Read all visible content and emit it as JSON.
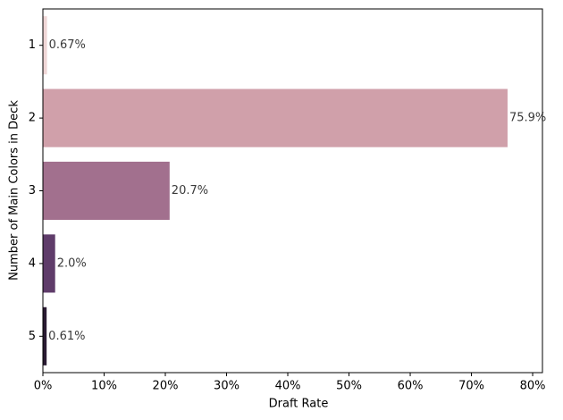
{
  "chart_data": {
    "type": "barh",
    "xlabel": "Draft Rate",
    "ylabel": "Number of Main Colors in Deck",
    "categories": [
      "1",
      "2",
      "3",
      "4",
      "5"
    ],
    "values": [
      0.67,
      75.9,
      20.7,
      2.0,
      0.61
    ],
    "value_labels": [
      "0.67%",
      "75.9%",
      "20.7%",
      "2.0%",
      "0.61%"
    ],
    "colors": [
      "#efd6d6",
      "#d0a0aa",
      "#a2708e",
      "#5f3c6a",
      "#2a1a32"
    ],
    "xlim": [
      0,
      81.6
    ],
    "xticks": [
      {
        "value": 0,
        "label": "0%"
      },
      {
        "value": 10,
        "label": "10%"
      },
      {
        "value": 20,
        "label": "20%"
      },
      {
        "value": 30,
        "label": "30%"
      },
      {
        "value": 40,
        "label": "40%"
      },
      {
        "value": 50,
        "label": "50%"
      },
      {
        "value": 60,
        "label": "60%"
      },
      {
        "value": 70,
        "label": "70%"
      },
      {
        "value": 80,
        "label": "80%"
      }
    ],
    "grid": false
  }
}
